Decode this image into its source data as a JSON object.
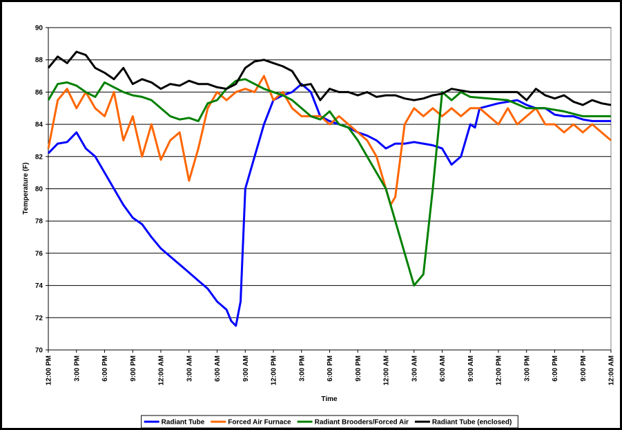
{
  "chart_data": {
    "type": "line",
    "y_label": "Temperature (F)",
    "x_label": "Time",
    "xlim": [
      0,
      60
    ],
    "ylim": [
      70,
      90
    ],
    "yticks": [
      70,
      72,
      74,
      76,
      78,
      80,
      82,
      84,
      86,
      88,
      90
    ],
    "xticks": [
      {
        "value": 0,
        "label": "12:00 PM"
      },
      {
        "value": 3,
        "label": "3:00 PM"
      },
      {
        "value": 6,
        "label": "6:00 PM"
      },
      {
        "value": 9,
        "label": "9:00 PM"
      },
      {
        "value": 12,
        "label": "12:00 AM"
      },
      {
        "value": 15,
        "label": "3:00 AM"
      },
      {
        "value": 18,
        "label": "6:00 AM"
      },
      {
        "value": 21,
        "label": "9:00 AM"
      },
      {
        "value": 24,
        "label": "12:00 PM"
      },
      {
        "value": 27,
        "label": "3:00 PM"
      },
      {
        "value": 30,
        "label": "6:00 PM"
      },
      {
        "value": 33,
        "label": "9:00 PM"
      },
      {
        "value": 36,
        "label": "12:00 AM"
      },
      {
        "value": 39,
        "label": "3:00 AM"
      },
      {
        "value": 42,
        "label": "6:00 AM"
      },
      {
        "value": 45,
        "label": "9:00 AM"
      },
      {
        "value": 48,
        "label": "12:00 PM"
      },
      {
        "value": 51,
        "label": "3:00 PM"
      },
      {
        "value": 54,
        "label": "6:00 PM"
      },
      {
        "value": 57,
        "label": "9:00 PM"
      },
      {
        "value": 60,
        "label": "12:00 AM"
      }
    ],
    "grid": true,
    "legend": "bottom",
    "series": [
      {
        "name": "Radiant Tube",
        "color": "#0000ff",
        "x": [
          0,
          1,
          2,
          3,
          4,
          5,
          6,
          7,
          8,
          9,
          10,
          11,
          12,
          13,
          14,
          15,
          16,
          17,
          18,
          19,
          19.5,
          20,
          20.5,
          21,
          22,
          23,
          24,
          25,
          26,
          27,
          28,
          29,
          30,
          31,
          32,
          33,
          34,
          35,
          36,
          37,
          38,
          39,
          40,
          41,
          42,
          43,
          44,
          45,
          45.5,
          46,
          48,
          50,
          51,
          52,
          53,
          54,
          55,
          56,
          57,
          58,
          59,
          60
        ],
        "values": [
          82.2,
          82.8,
          82.9,
          83.5,
          82.5,
          82,
          81,
          80,
          79,
          78.2,
          77.8,
          77,
          76.3,
          75.8,
          75.3,
          74.8,
          74.3,
          73.8,
          73,
          72.5,
          71.8,
          71.5,
          73,
          80,
          82,
          84,
          85.5,
          85.8,
          86,
          86.5,
          86,
          84.5,
          84.2,
          84,
          83.8,
          83.5,
          83.3,
          83,
          82.5,
          82.8,
          82.8,
          82.9,
          82.8,
          82.7,
          82.5,
          81.5,
          82,
          84,
          83.8,
          85,
          85.3,
          85.5,
          85.2,
          85,
          85,
          84.6,
          84.5,
          84.5,
          84.3,
          84.2,
          84.2,
          84.2
        ]
      },
      {
        "name": "Forced Air Furnace",
        "color": "#ff6600",
        "x": [
          0,
          1,
          2,
          3,
          4,
          5,
          6,
          7,
          8,
          9,
          10,
          11,
          12,
          13,
          14,
          15,
          16,
          17,
          18,
          19,
          20,
          21,
          22,
          23,
          24,
          25,
          26,
          27,
          28,
          29,
          30,
          31,
          32,
          33,
          34,
          35,
          36,
          36.5,
          37,
          38,
          39,
          40,
          41,
          42,
          43,
          44,
          45,
          46,
          48,
          49,
          50,
          51,
          52,
          53,
          54,
          55,
          56,
          57,
          58,
          59,
          60
        ],
        "values": [
          82.5,
          85.5,
          86.2,
          85,
          86,
          85,
          84.5,
          86,
          83,
          84.5,
          82,
          84,
          81.8,
          83,
          83.5,
          80.5,
          82.5,
          85,
          86,
          85.5,
          86,
          86.2,
          86,
          87,
          85.5,
          86,
          85,
          84.5,
          84.5,
          84.5,
          84,
          84.5,
          84,
          83.5,
          83,
          82,
          80,
          79,
          79.5,
          84,
          85,
          84.5,
          85,
          84.5,
          85,
          84.5,
          85,
          85,
          84,
          85,
          84,
          84.5,
          85,
          84,
          84,
          83.5,
          84,
          83.5,
          84,
          83.5,
          83
        ]
      },
      {
        "name": "Radiant Brooders/Forced Air",
        "color": "#008000",
        "x": [
          0,
          1,
          2,
          3,
          4,
          5,
          6,
          7,
          8,
          9,
          10,
          11,
          12,
          13,
          14,
          15,
          16,
          17,
          18,
          19,
          20,
          21,
          22,
          23,
          24,
          25,
          26,
          27,
          28,
          29,
          30,
          31,
          32,
          33,
          34,
          35,
          36,
          37,
          38,
          39,
          40,
          41,
          42,
          43,
          44,
          45,
          47,
          49,
          51,
          53,
          55,
          57,
          59,
          60
        ],
        "values": [
          85.5,
          86.5,
          86.6,
          86.4,
          86,
          85.7,
          86.6,
          86.3,
          86,
          85.8,
          85.7,
          85.5,
          85,
          84.5,
          84.3,
          84.4,
          84.2,
          85.3,
          85.5,
          86.2,
          86.7,
          86.8,
          86.5,
          86.2,
          86,
          85.8,
          85.5,
          85,
          84.5,
          84.3,
          84.8,
          84,
          83.8,
          83,
          82,
          81,
          80,
          78,
          76,
          74,
          74.7,
          80,
          86,
          85.5,
          86,
          85.7,
          85.6,
          85.5,
          85,
          85,
          84.8,
          84.5,
          84.5,
          84.5
        ]
      },
      {
        "name": "Radiant Tube (enclosed)",
        "color": "#000000",
        "x": [
          0,
          1,
          2,
          3,
          4,
          5,
          6,
          7,
          8,
          9,
          10,
          11,
          12,
          13,
          14,
          15,
          16,
          17,
          18,
          19,
          20,
          21,
          22,
          23,
          24,
          25,
          26,
          27,
          28,
          29,
          30,
          31,
          32,
          33,
          34,
          35,
          36,
          37,
          38,
          39,
          40,
          41,
          42,
          43,
          44,
          45,
          48,
          50,
          51,
          52,
          53,
          54,
          55,
          56,
          57,
          58,
          59,
          60
        ],
        "values": [
          87.5,
          88.2,
          87.8,
          88.5,
          88.3,
          87.5,
          87.2,
          86.8,
          87.5,
          86.5,
          86.8,
          86.6,
          86.2,
          86.5,
          86.4,
          86.7,
          86.5,
          86.5,
          86.3,
          86.2,
          86.5,
          87.5,
          87.9,
          88,
          87.8,
          87.6,
          87.3,
          86.4,
          86.5,
          85.5,
          86.2,
          86,
          86,
          85.8,
          86,
          85.7,
          85.8,
          85.8,
          85.6,
          85.5,
          85.6,
          85.8,
          85.9,
          86.2,
          86.1,
          86,
          86,
          86,
          85.5,
          86.2,
          85.8,
          85.6,
          85.8,
          85.4,
          85.2,
          85.5,
          85.3,
          85.2
        ]
      }
    ]
  }
}
